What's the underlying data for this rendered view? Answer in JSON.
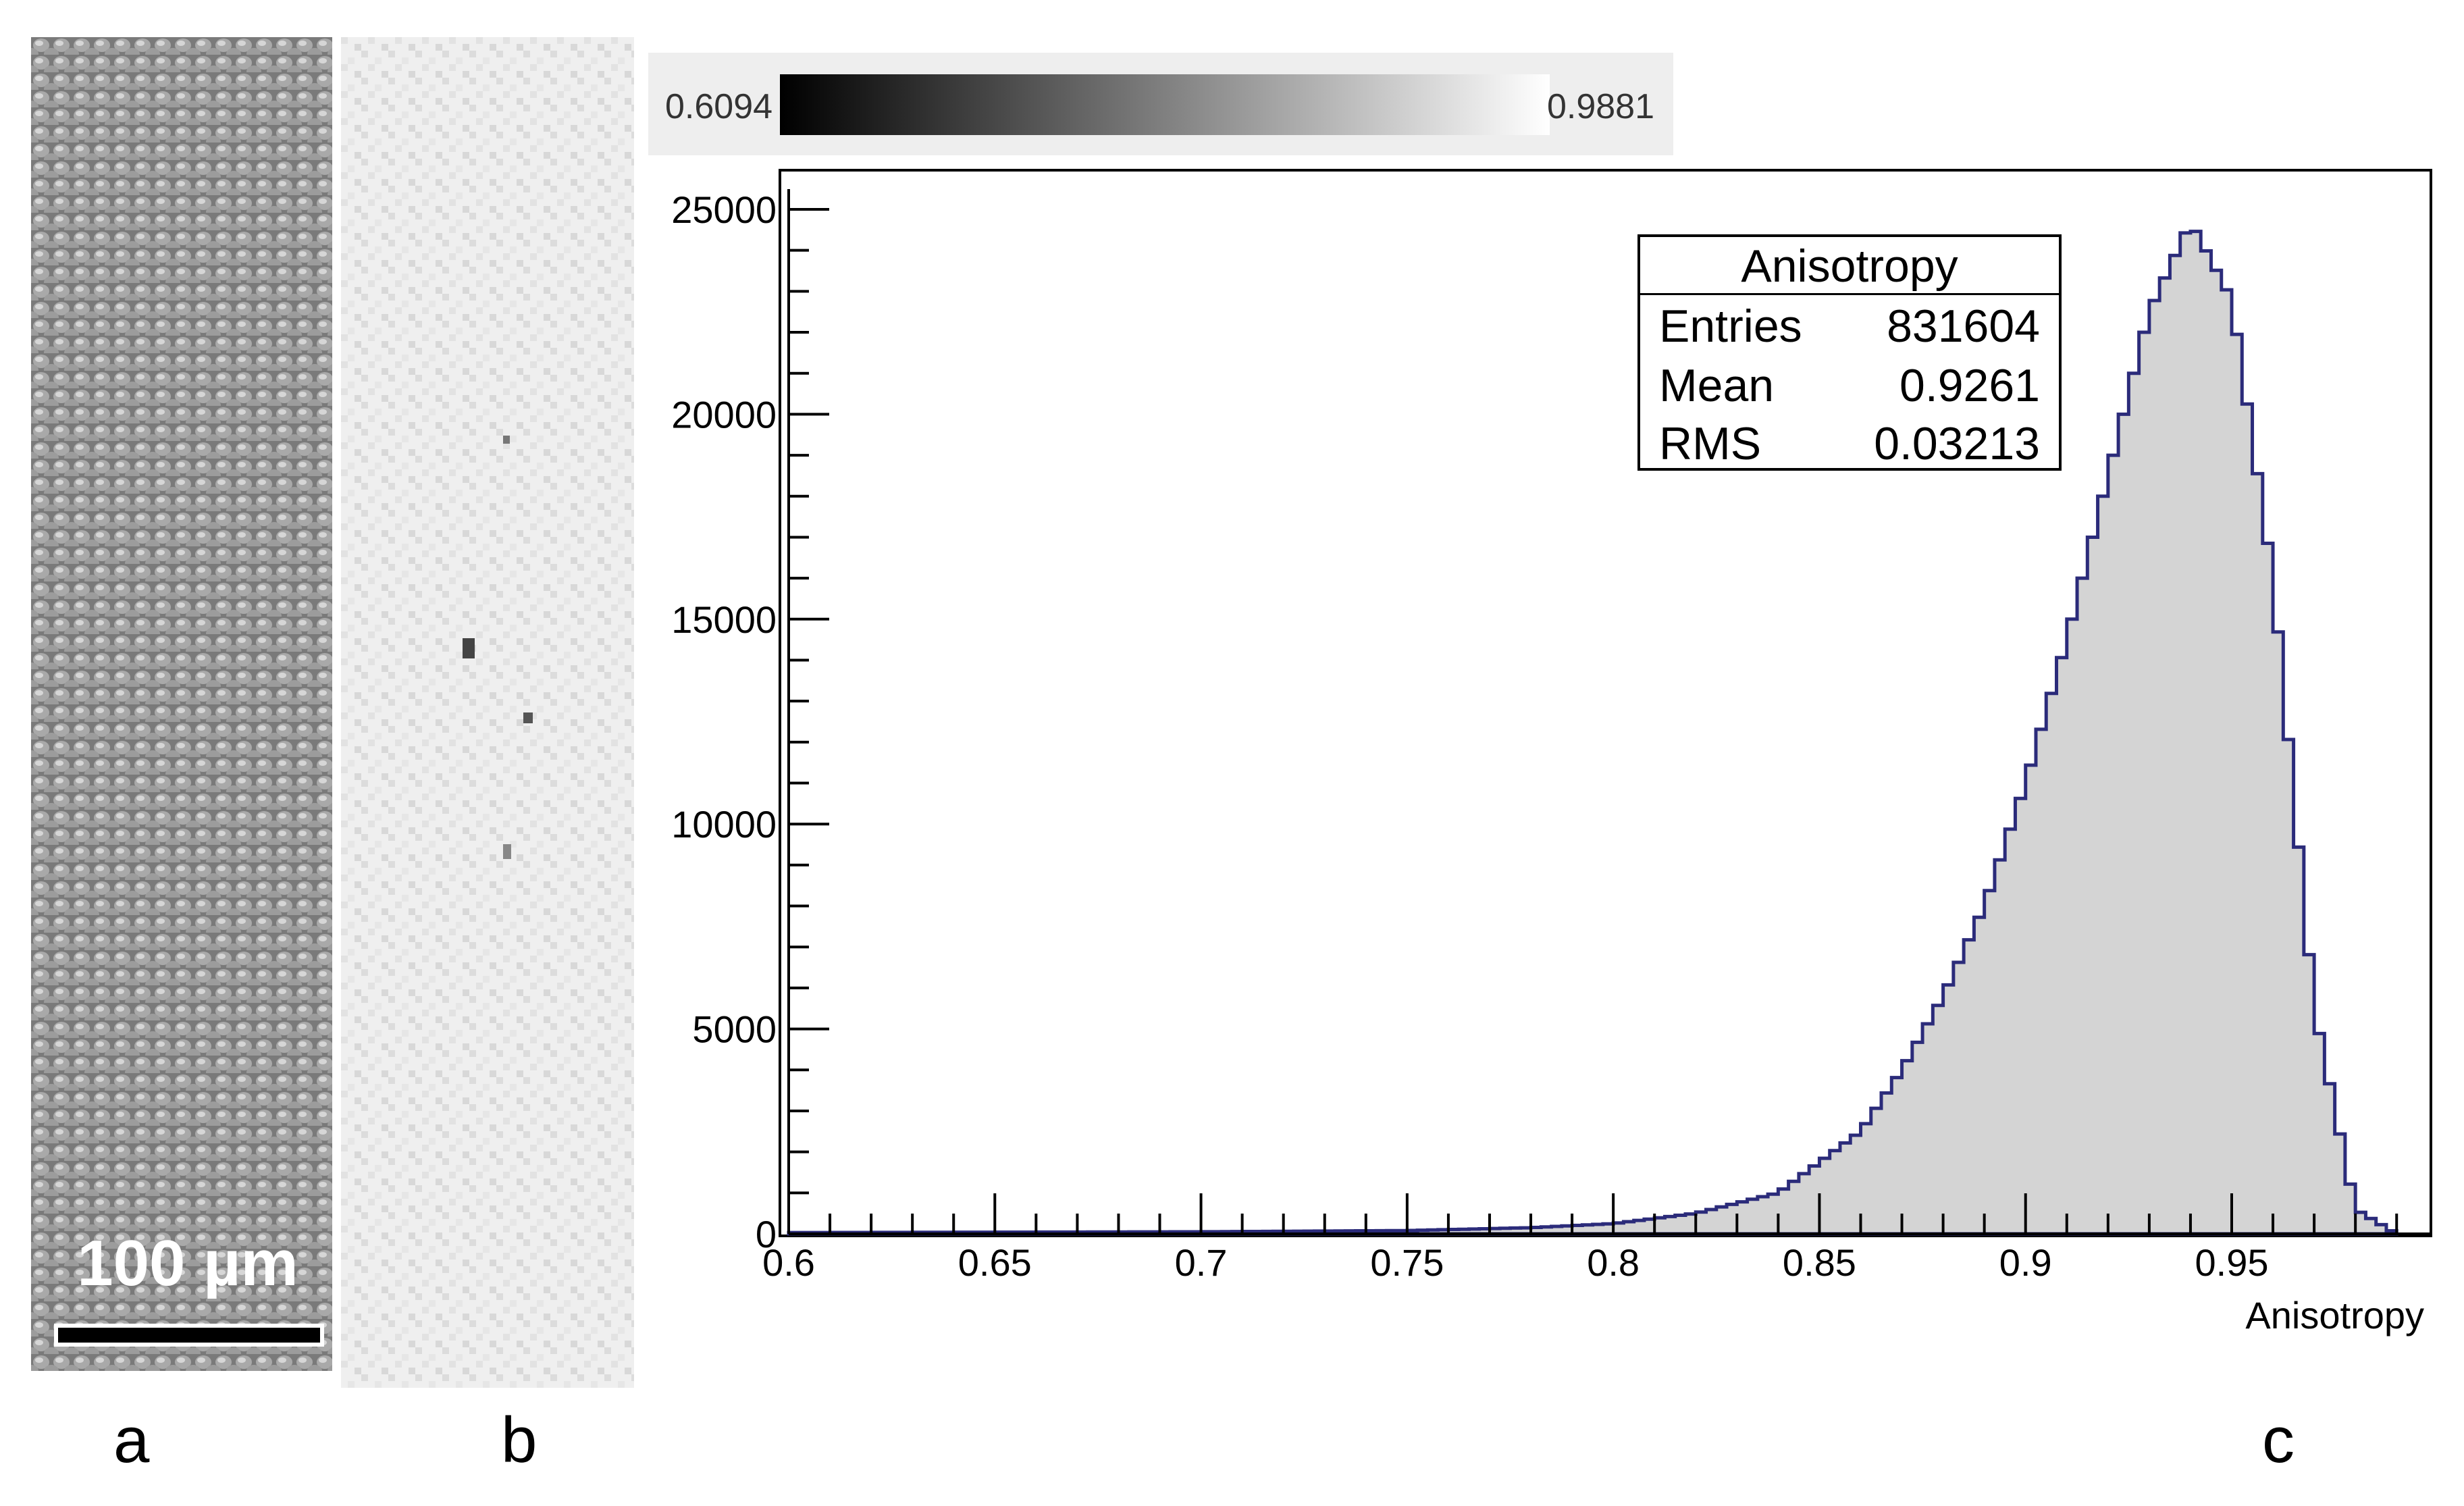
{
  "panels": {
    "a": "a",
    "b": "b",
    "c": "c"
  },
  "scale_bar": {
    "label": "100 µm"
  },
  "colorbar": {
    "min_label": "0.6094",
    "max_label": "0.9881",
    "colormap": "grayscale"
  },
  "stats_box": {
    "title": "Anisotropy",
    "rows": [
      {
        "key": "Entries",
        "value": "831604"
      },
      {
        "key": "Mean",
        "value": "0.9261"
      },
      {
        "key": "RMS",
        "value": "0.03213"
      }
    ]
  },
  "chart_data": {
    "type": "histogram",
    "xlabel": "Anisotropy",
    "ylabel": "",
    "xlim": [
      0.6,
      0.99
    ],
    "ylim": [
      0,
      25000
    ],
    "x_ticks": [
      "0.6",
      "0.65",
      "0.7",
      "0.75",
      "0.8",
      "0.85",
      "0.9",
      "0.95"
    ],
    "y_ticks": [
      "0",
      "5000",
      "10000",
      "15000",
      "20000",
      "25000"
    ],
    "fill_color": "#d4d4d4",
    "line_color": "#2b2b7a",
    "bins": [
      {
        "x": 0.6,
        "y": 30
      },
      {
        "x": 0.65,
        "y": 40
      },
      {
        "x": 0.7,
        "y": 50
      },
      {
        "x": 0.75,
        "y": 80
      },
      {
        "x": 0.78,
        "y": 150
      },
      {
        "x": 0.8,
        "y": 250
      },
      {
        "x": 0.82,
        "y": 500
      },
      {
        "x": 0.84,
        "y": 1000
      },
      {
        "x": 0.86,
        "y": 2500
      },
      {
        "x": 0.87,
        "y": 4000
      },
      {
        "x": 0.88,
        "y": 5800
      },
      {
        "x": 0.89,
        "y": 8000
      },
      {
        "x": 0.9,
        "y": 11000
      },
      {
        "x": 0.91,
        "y": 14500
      },
      {
        "x": 0.92,
        "y": 18500
      },
      {
        "x": 0.93,
        "y": 22500
      },
      {
        "x": 0.94,
        "y": 24700
      },
      {
        "x": 0.95,
        "y": 22800
      },
      {
        "x": 0.96,
        "y": 16000
      },
      {
        "x": 0.97,
        "y": 5500
      },
      {
        "x": 0.98,
        "y": 600
      },
      {
        "x": 0.99,
        "y": 0
      }
    ]
  }
}
